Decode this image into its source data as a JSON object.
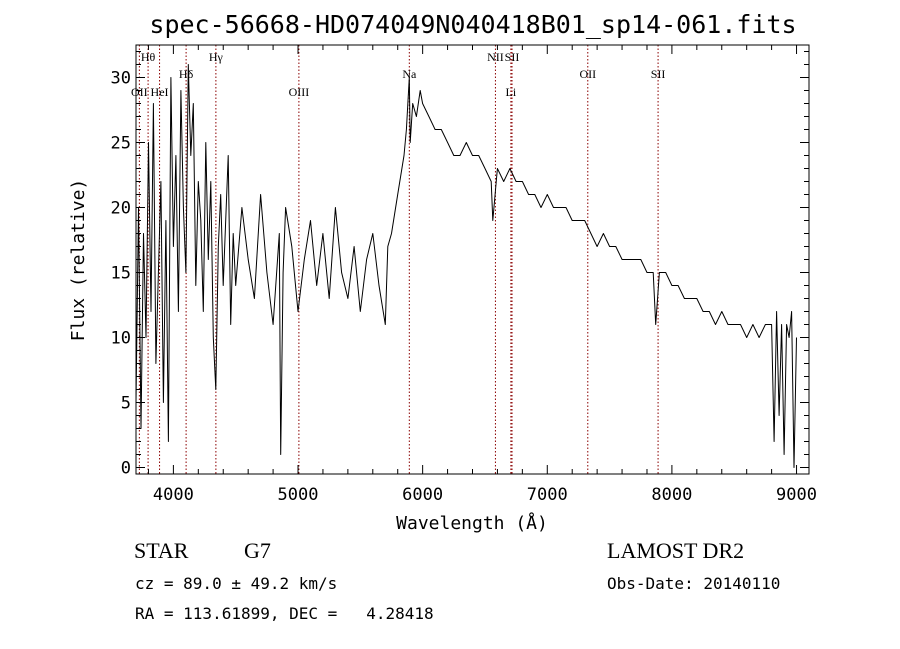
{
  "chart_data": {
    "type": "line",
    "title": "spec-56668-HD074049N040418B01_sp14-061.fits",
    "xlabel": "Wavelength (Å)",
    "ylabel": "Flux (relative)",
    "xlim": [
      3700,
      9100
    ],
    "ylim": [
      -0.5,
      32.5
    ],
    "xticks": [
      4000,
      5000,
      6000,
      7000,
      8000,
      9000
    ],
    "yticks": [
      0,
      5,
      10,
      15,
      20,
      25,
      30
    ],
    "grid": false,
    "line_color": "#000000",
    "marker_color": "#8b0000",
    "spectral_lines": [
      {
        "name": "Hθ",
        "wavelength": 3797,
        "row": 1
      },
      {
        "name": "OII",
        "wavelength": 3727,
        "row": 3
      },
      {
        "name": "HeI",
        "wavelength": 3889,
        "row": 3
      },
      {
        "name": "Hδ",
        "wavelength": 4102,
        "row": 2
      },
      {
        "name": "Hγ",
        "wavelength": 4341,
        "row": 1
      },
      {
        "name": "OIII",
        "wavelength": 5007,
        "row": 3
      },
      {
        "name": "Na",
        "wavelength": 5893,
        "row": 2
      },
      {
        "name": "NII",
        "wavelength": 6584,
        "row": 1
      },
      {
        "name": "SII",
        "wavelength": 6717,
        "row": 1
      },
      {
        "name": "Li",
        "wavelength": 6708,
        "row": 3
      },
      {
        "name": "OII",
        "wavelength": 7325,
        "row": 2
      },
      {
        "name": "SII",
        "wavelength": 7889,
        "row": 2
      }
    ],
    "series": [
      {
        "x": [
          3700,
          3720,
          3740,
          3760,
          3780,
          3800,
          3820,
          3840,
          3860,
          3880,
          3900,
          3920,
          3940,
          3960,
          3980,
          4000,
          4020,
          4040,
          4060,
          4080,
          4100,
          4120,
          4140,
          4160,
          4180,
          4200,
          4220,
          4240,
          4260,
          4280,
          4300,
          4320,
          4340,
          4360,
          4380,
          4400,
          4420,
          4440,
          4460,
          4480,
          4500,
          4550,
          4600,
          4650,
          4700,
          4750,
          4800,
          4850,
          4861,
          4880,
          4900,
          4950,
          5000,
          5050,
          5100,
          5150,
          5200,
          5250,
          5300,
          5350,
          5400,
          5450,
          5500,
          5550,
          5600,
          5650,
          5700,
          5720,
          5750,
          5800,
          5850,
          5870,
          5893,
          5900,
          5920,
          5950,
          5980,
          6000,
          6050,
          6100,
          6150,
          6200,
          6250,
          6300,
          6350,
          6400,
          6450,
          6500,
          6550,
          6563,
          6600,
          6650,
          6700,
          6750,
          6800,
          6850,
          6900,
          6950,
          7000,
          7050,
          7100,
          7150,
          7200,
          7250,
          7300,
          7350,
          7400,
          7450,
          7500,
          7550,
          7600,
          7650,
          7700,
          7750,
          7800,
          7850,
          7870,
          7900,
          7950,
          8000,
          8050,
          8100,
          8150,
          8200,
          8250,
          8300,
          8350,
          8400,
          8450,
          8500,
          8550,
          8600,
          8650,
          8700,
          8750,
          8800,
          8820,
          8840,
          8860,
          8880,
          8900,
          8920,
          8940,
          8960,
          8980,
          9000
        ],
        "y": [
          5,
          20,
          3,
          18,
          10,
          25,
          12,
          28,
          8,
          15,
          22,
          5,
          19,
          2,
          30,
          17,
          24,
          12,
          29,
          20,
          15,
          31,
          24,
          28,
          14,
          22,
          19,
          12,
          25,
          16,
          22,
          10,
          6,
          17,
          21,
          14,
          19,
          24,
          11,
          18,
          14,
          20,
          16,
          13,
          21,
          15,
          11,
          18,
          1,
          15,
          20,
          17,
          12,
          16,
          19,
          14,
          18,
          13,
          20,
          15,
          13,
          17,
          12,
          16,
          18,
          14,
          11,
          17,
          18,
          21,
          24,
          26,
          30,
          25,
          28,
          27,
          29,
          28,
          27,
          26,
          26,
          25,
          24,
          24,
          25,
          24,
          24,
          23,
          22,
          19,
          23,
          22,
          23,
          22,
          22,
          21,
          21,
          20,
          21,
          20,
          20,
          20,
          19,
          19,
          19,
          18,
          17,
          18,
          17,
          17,
          16,
          16,
          16,
          16,
          15,
          15,
          11,
          15,
          15,
          14,
          14,
          13,
          13,
          13,
          12,
          12,
          11,
          12,
          11,
          11,
          11,
          10,
          11,
          10,
          11,
          11,
          2,
          12,
          4,
          11,
          1,
          11,
          10,
          12,
          0,
          10
        ]
      }
    ]
  },
  "info": {
    "class": "STAR",
    "subclass": "G7",
    "survey": "LAMOST DR2",
    "cz": "cz = 89.0 ± 49.2 km/s",
    "obsdate": "Obs-Date: 20140110",
    "radec": "RA = 113.61899, DEC =   4.28418"
  }
}
